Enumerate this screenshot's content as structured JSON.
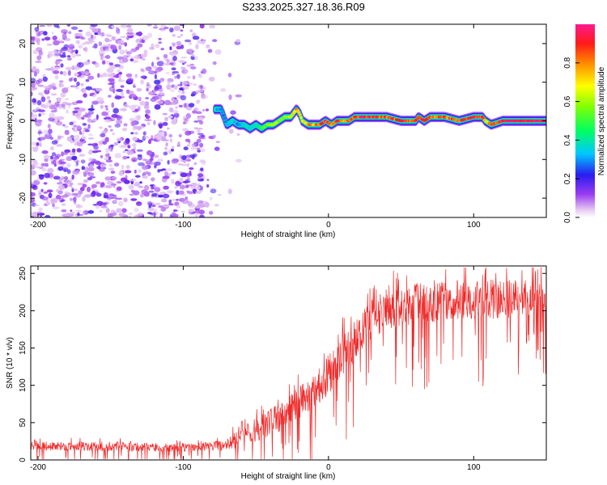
{
  "title": "S233.2025.327.18.36.R09",
  "chart_data": [
    {
      "type": "heatmap",
      "name": "spectrogram",
      "xlabel": "Height of straight line (km)",
      "ylabel": "Frequency (Hz)",
      "xlim": [
        -205,
        150
      ],
      "ylim": [
        -25,
        25
      ],
      "xticks": [
        -200,
        -100,
        0,
        100
      ],
      "yticks": [
        -20,
        -10,
        0,
        10,
        20
      ],
      "colorbar": {
        "label": "Normalized spectral amplitude",
        "range": [
          0,
          1
        ],
        "ticks": [
          0.0,
          0.2,
          0.4,
          0.6,
          0.8
        ]
      },
      "noise_region_x": [
        -205,
        -60
      ],
      "ridge": {
        "x": [
          -78,
          -74,
          -72,
          -70,
          -66,
          -62,
          -58,
          -54,
          -50,
          -46,
          -42,
          -38,
          -34,
          -30,
          -26,
          -22,
          -20,
          -18,
          -14,
          -10,
          -6,
          -2,
          2,
          6,
          10,
          14,
          18,
          22,
          30,
          40,
          50,
          60,
          62,
          66,
          70,
          80,
          90,
          100,
          106,
          108,
          112,
          120,
          130,
          140,
          150
        ],
        "y": [
          3,
          3,
          1,
          -1,
          0,
          -1,
          -1,
          -2,
          -1,
          -2,
          -1,
          -1,
          0,
          1,
          1,
          3,
          2,
          0,
          -1,
          -1,
          -1,
          0,
          -1,
          0,
          0,
          0,
          1,
          1,
          1,
          1,
          0,
          0,
          1,
          0,
          1,
          1,
          0,
          1,
          1,
          0,
          -1,
          0,
          0,
          0,
          0
        ],
        "amp": [
          0.35,
          0.3,
          0.25,
          0.3,
          0.35,
          0.3,
          0.35,
          0.4,
          0.4,
          0.45,
          0.55,
          0.6,
          0.6,
          0.6,
          0.65,
          0.8,
          0.7,
          0.65,
          0.75,
          0.8,
          0.85,
          0.9,
          0.85,
          0.9,
          0.8,
          0.85,
          0.85,
          0.95,
          0.9,
          0.85,
          0.9,
          0.9,
          0.95,
          0.9,
          0.85,
          0.85,
          0.9,
          0.95,
          0.9,
          0.7,
          0.85,
          1.0,
          1.0,
          1.0,
          1.0
        ]
      }
    },
    {
      "type": "line",
      "name": "snr",
      "xlabel": "Height of straight line (km)",
      "ylabel": "SNR (10 * v/v)",
      "xlim": [
        -205,
        150
      ],
      "ylim": [
        0,
        260
      ],
      "xticks": [
        -200,
        -100,
        0,
        100
      ],
      "yticks": [
        0,
        50,
        100,
        150,
        200,
        250
      ],
      "series": [
        {
          "name": "SNR",
          "color": "#ee2a2a",
          "x": [
            -205,
            -180,
            -150,
            -120,
            -90,
            -70,
            -62,
            -60,
            -55,
            -45,
            -35,
            -25,
            -15,
            -5,
            0,
            5,
            10,
            15,
            20,
            25,
            30,
            40,
            50,
            60,
            80,
            100,
            120,
            150
          ],
          "mean": [
            19,
            18,
            18,
            17,
            17,
            20,
            30,
            45,
            35,
            45,
            55,
            70,
            85,
            100,
            115,
            125,
            140,
            150,
            165,
            180,
            190,
            200,
            205,
            210,
            212,
            215,
            215,
            218
          ],
          "spread": [
            10,
            10,
            10,
            10,
            10,
            12,
            30,
            25,
            25,
            30,
            35,
            35,
            40,
            40,
            45,
            45,
            45,
            45,
            45,
            45,
            45,
            45,
            45,
            45,
            45,
            45,
            45,
            40
          ]
        }
      ]
    }
  ]
}
